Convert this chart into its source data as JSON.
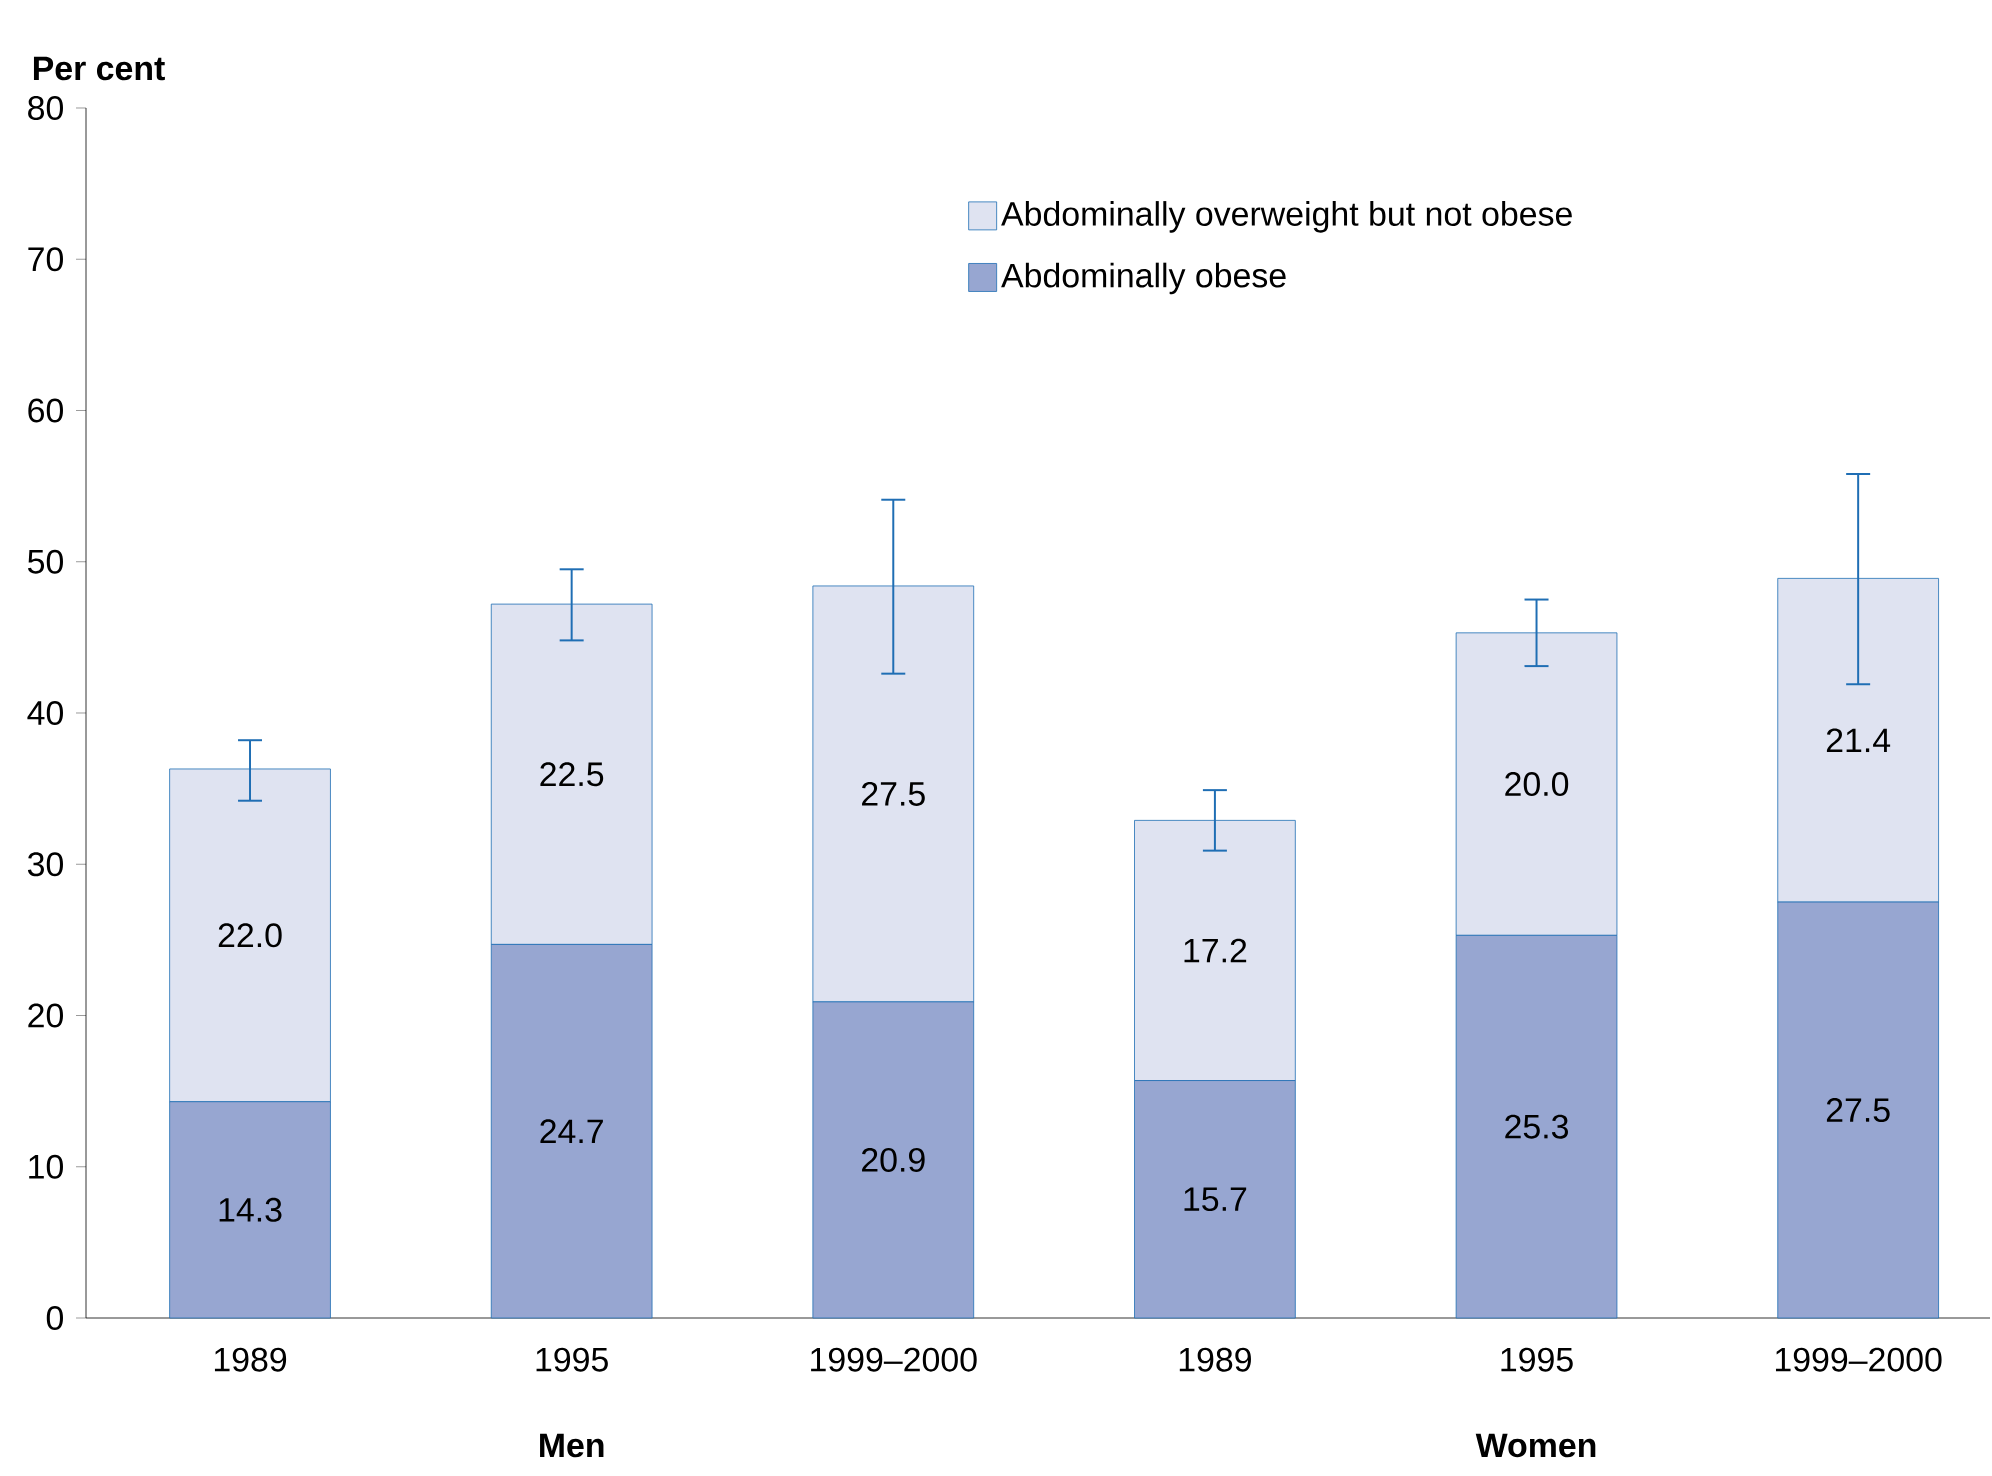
{
  "chart_data": {
    "type": "bar",
    "stacked": true,
    "legend": "top right",
    "grid": false,
    "ylabel": "Per cent",
    "categories": [
      "1989",
      "1995",
      "1999–2000",
      "1989",
      "1995",
      "1999–2000"
    ],
    "annotations": [
      "Men",
      "Women"
    ],
    "ylim": [
      0,
      80
    ],
    "yticks": [
      0,
      10,
      20,
      30,
      40,
      50,
      60,
      70,
      80
    ],
    "series": [
      {
        "name": "Abdominally obese",
        "color": "#97a6d1",
        "values": [
          14.3,
          24.7,
          20.9,
          15.7,
          25.3,
          27.5
        ],
        "value_labels": [
          "14.3",
          "24.7",
          "20.9",
          "15.7",
          "25.3",
          "27.5"
        ]
      },
      {
        "name": "Abdominally overweight but not obese",
        "color": "#dfe3f1",
        "values": [
          22.0,
          22.5,
          27.5,
          17.2,
          20.0,
          21.4
        ],
        "value_labels": [
          "22.0",
          "22.5",
          "27.5",
          "17.2",
          "20.0",
          "21.4"
        ],
        "errors": [
          [
            34.2,
            38.2
          ],
          [
            44.8,
            49.5
          ],
          [
            42.6,
            54.1
          ],
          [
            30.9,
            34.9
          ],
          [
            43.1,
            47.5
          ],
          [
            41.9,
            55.8
          ]
        ]
      }
    ]
  }
}
